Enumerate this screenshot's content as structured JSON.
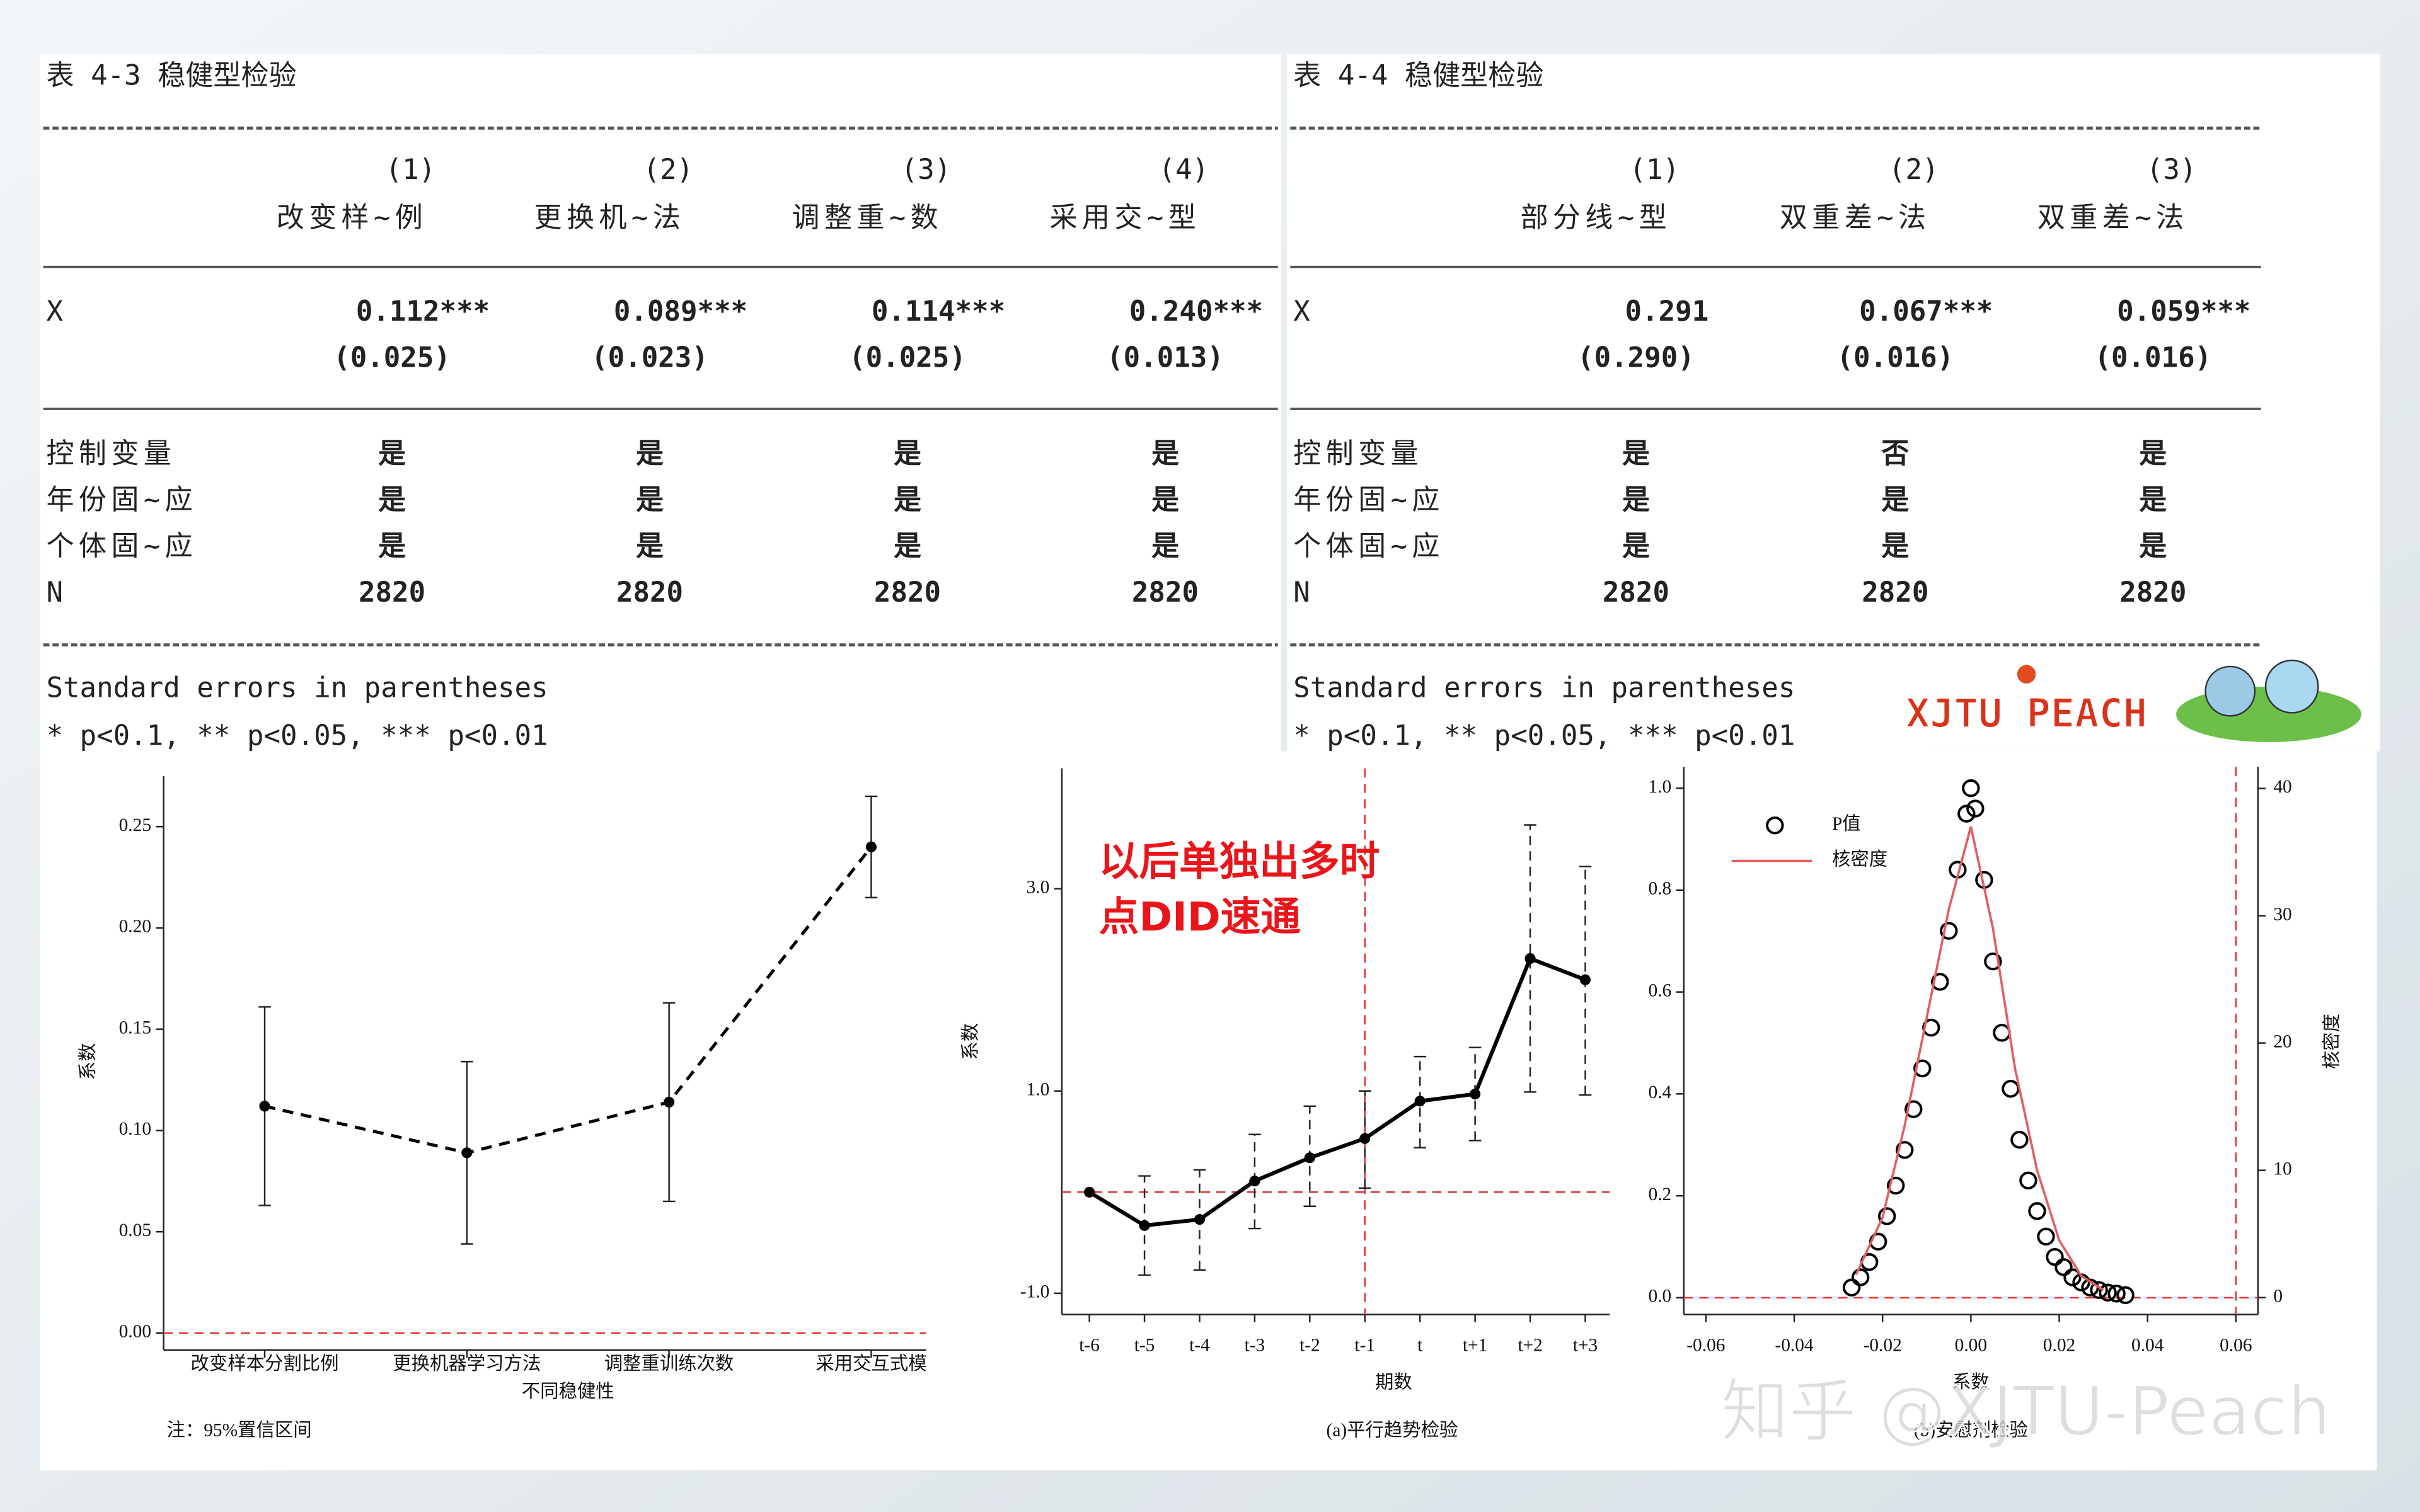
{
  "tables": [
    {
      "title": "表 4-3 稳健型检验",
      "col_numbers": [
        "(1)",
        "(2)",
        "(3)",
        "(4)"
      ],
      "col_names": [
        "改变样~例",
        "更换机~法",
        "调整重~数",
        "采用交~型"
      ],
      "rows": [
        [
          "X",
          "0.112***",
          "0.089***",
          "0.114***",
          "0.240***"
        ],
        [
          null,
          "(0.025)",
          "(0.023)",
          "(0.025)",
          "(0.013)"
        ],
        [
          "控制变量",
          "是",
          "是",
          "是",
          "是"
        ],
        [
          "年份固~应",
          "是",
          "是",
          "是",
          "是"
        ],
        [
          "个体固~应",
          "是",
          "是",
          "是",
          "是"
        ],
        [
          "N",
          "2820",
          "2820",
          "2820",
          "2820"
        ]
      ],
      "notes": [
        "Standard errors in parentheses",
        "* p<0.1, ** p<0.05, *** p<0.01"
      ]
    },
    {
      "title": "表 4-4 稳健型检验",
      "col_numbers": [
        "(1)",
        "(2)",
        "(3)"
      ],
      "col_names": [
        "部分线~型",
        "双重差~法",
        "双重差~法"
      ],
      "rows": [
        [
          "X",
          "0.291",
          "0.067***",
          "0.059***"
        ],
        [
          null,
          "(0.290)",
          "(0.016)",
          "(0.016)"
        ],
        [
          "控制变量",
          "是",
          "否",
          "是"
        ],
        [
          "年份固~应",
          "是",
          "是",
          "是"
        ],
        [
          "个体固~应",
          "是",
          "是",
          "是"
        ],
        [
          "N",
          "2820",
          "2820",
          "2820"
        ]
      ],
      "notes": [
        "Standard errors in parentheses",
        "* p<0.1, ** p<0.05, *** p<0.01"
      ]
    }
  ],
  "logo": "XJTU PEACH",
  "watermark": "知乎 @XJTU-Peach",
  "chart_data": [
    {
      "type": "line",
      "ylabel": "系数",
      "xlabel": "不同稳健性",
      "note": "注：95%置信区间",
      "categories": [
        "改变样本分割比例",
        "更换机器学习方法",
        "调整重训练次数",
        "采用交互式模"
      ],
      "series": [
        {
          "values": [
            0.112,
            0.089,
            0.114,
            0.24
          ],
          "errors": [
            0.049,
            0.045,
            0.049,
            0.025
          ],
          "color": "#000000"
        }
      ],
      "ylim": [
        0,
        0.275
      ],
      "yticks": [
        {
          "value": 0,
          "label": "0.00"
        },
        0.05,
        {
          "value": 0.1,
          "label": "0.10"
        },
        0.15,
        {
          "value": 0.2,
          "label": "0.20"
        },
        0.25
      ],
      "hline": 0,
      "ref_color": "#e03030"
    },
    {
      "type": "line",
      "annotation": [
        "以后单独出多时",
        "点DID速通"
      ],
      "ylabel": "系数",
      "xlabel": "期数",
      "caption": "(a)平行趋势检验",
      "categories": [
        "t-6",
        "t-5",
        "t-4",
        "t-3",
        "t-2",
        "t-1",
        "t",
        "t+1",
        "t+2",
        "t+3"
      ],
      "series": [
        {
          "values": [
            0,
            -0.33,
            -0.27,
            0.11,
            0.34,
            0.53,
            0.9,
            0.97,
            2.31,
            2.1
          ],
          "lower": [
            null,
            -0.82,
            -0.77,
            -0.36,
            -0.14,
            0.04,
            0.44,
            0.51,
            0.99,
            0.96
          ],
          "upper": [
            null,
            0.16,
            0.22,
            0.57,
            0.85,
            1.0,
            1.34,
            1.43,
            3.63,
            3.22
          ],
          "color": "#000000"
        }
      ],
      "ylim": [
        -1.21,
        4.19
      ],
      "yticks": [
        {
          "value": -1,
          "label": "-1.0"
        },
        {
          "value": 1,
          "label": "1.0"
        },
        {
          "value": 3,
          "label": "3.0"
        }
      ],
      "hline": 0,
      "vline": "t-1",
      "ref_color": "#e03030"
    },
    {
      "type": "scatter",
      "xlabel": "系数",
      "y2label": "核密度",
      "caption": "(b)安慰剂检验",
      "series": [
        {
          "name": "P值",
          "type": "scatter",
          "color": "#000000",
          "x": [
            -0.027,
            -0.025,
            -0.023,
            -0.021,
            -0.019,
            -0.017,
            -0.015,
            -0.013,
            -0.011,
            -0.009,
            -0.007,
            -0.005,
            -0.003,
            -0.001,
            0,
            0.001,
            0.003,
            0.005,
            0.007,
            0.009,
            0.011,
            0.013,
            0.015,
            0.017,
            0.019,
            0.021,
            0.023,
            0.025,
            0.027,
            0.029,
            0.031,
            0.033,
            0.035
          ],
          "values": [
            0.02,
            0.04,
            0.07,
            0.11,
            0.16,
            0.22,
            0.29,
            0.37,
            0.45,
            0.53,
            0.62,
            0.72,
            0.84,
            0.95,
            1.0,
            0.96,
            0.82,
            0.66,
            0.52,
            0.41,
            0.31,
            0.23,
            0.17,
            0.12,
            0.08,
            0.06,
            0.04,
            0.03,
            0.02,
            0.015,
            0.01,
            0.008,
            0.005
          ]
        },
        {
          "name": "核密度",
          "type": "line",
          "axis": "y2",
          "color": "#e06060",
          "x": [
            -0.026,
            -0.02,
            -0.015,
            -0.01,
            -0.005,
            0,
            0.005,
            0.01,
            0.015,
            0.02,
            0.025,
            0.03
          ],
          "values": [
            1.8,
            6.3,
            13.5,
            22,
            30.5,
            37,
            29,
            18,
            10,
            4.5,
            1.7,
            0.6
          ]
        }
      ],
      "xlim": [
        -0.065,
        0.065
      ],
      "xticks": [
        -0.06,
        -0.04,
        -0.02,
        {
          "value": 0,
          "label": "0.00"
        },
        0.02,
        0.04,
        0.06
      ],
      "ylim": [
        -0.033,
        1.042
      ],
      "yticks": [
        {
          "value": 0,
          "label": "0.0"
        },
        0.2,
        0.4,
        0.6,
        0.8,
        {
          "value": 1,
          "label": "1.0"
        }
      ],
      "y2lim": [
        -1.33,
        41.7
      ],
      "y2ticks": [
        0,
        10,
        20,
        30,
        40
      ],
      "hline": 0,
      "vline": 0.06,
      "ref_color": "#e03030"
    }
  ]
}
